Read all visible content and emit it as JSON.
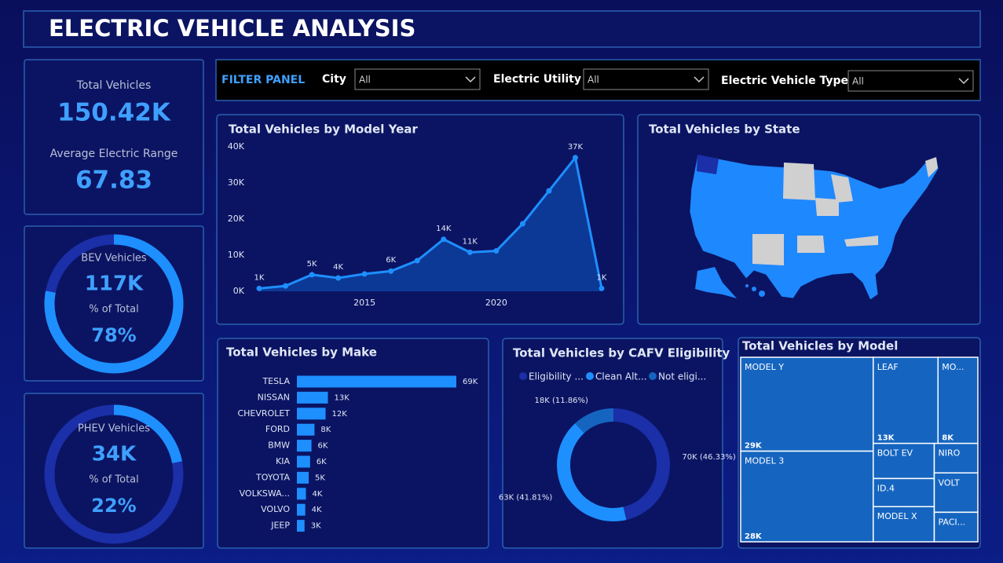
{
  "header": {
    "title": "ELECTRIC VEHICLE ANALYSIS"
  },
  "kpis": {
    "total_label": "Total Vehicles",
    "total_value": "150.42K",
    "range_label": "Average Electric Range",
    "range_value": "67.83"
  },
  "gauges": [
    {
      "label": "BEV Vehicles",
      "value": "117K",
      "sub_label": "% of Total",
      "percent": 78,
      "percent_label": "78%"
    },
    {
      "label": "PHEV Vehicles",
      "value": "34K",
      "sub_label": "% of Total",
      "percent": 22,
      "percent_label": "22%"
    }
  ],
  "filters": {
    "title": "FILTER PANEL",
    "items": [
      {
        "label": "City",
        "value": "All"
      },
      {
        "label": "Electric Utility",
        "value": "All"
      },
      {
        "label": "Electric Vehicle Type",
        "value": "All"
      }
    ]
  },
  "map": {
    "title": "Total Vehicles by State"
  },
  "chart_data": [
    {
      "type": "line",
      "title": "Total Vehicles by Model Year",
      "x": [
        2011,
        2012,
        2013,
        2014,
        2015,
        2016,
        2017,
        2018,
        2019,
        2020,
        2021,
        2022,
        2023,
        2024
      ],
      "values": [
        800,
        1500,
        4600,
        3700,
        4800,
        5600,
        8500,
        14400,
        10800,
        11200,
        18700,
        27800,
        37000,
        800
      ],
      "value_labels": [
        "1K",
        null,
        "5K",
        "4K",
        null,
        "6K",
        null,
        "14K",
        "11K",
        null,
        null,
        null,
        "37K",
        "1K"
      ],
      "color": "#1e8fff",
      "xlim": [
        2011,
        2024
      ],
      "xticks": [
        2015,
        2020
      ],
      "ylim": [
        0,
        40000
      ],
      "yticks": [
        {
          "value": 0,
          "label": "0K"
        },
        {
          "value": 10000,
          "label": "10K"
        },
        {
          "value": 20000,
          "label": "20K"
        },
        {
          "value": 30000,
          "label": "30K"
        },
        {
          "value": 40000,
          "label": "40K"
        }
      ]
    },
    {
      "type": "bar",
      "title": "Total Vehicles by Make",
      "categories": [
        "TESLA",
        "NISSAN",
        "CHEVROLET",
        "FORD",
        "BMW",
        "KIA",
        "TOYOTA",
        "VOLKSWA...",
        "VOLVO",
        "JEEP"
      ],
      "values": [
        68.9,
        13.4,
        12.4,
        7.6,
        6.3,
        5.7,
        5.1,
        3.9,
        3.6,
        3.3
      ],
      "value_labels": [
        "69K",
        "13K",
        "12K",
        "8K",
        "6K",
        "6K",
        "5K",
        "4K",
        "4K",
        "3K"
      ],
      "color": "#1e8fff"
    },
    {
      "type": "donut",
      "title": "Total Vehicles by CAFV Eligibility",
      "categories": [
        "Eligibility ...",
        "Clean Alt...",
        "Not eligi..."
      ],
      "values": [
        46.33,
        41.81,
        11.86
      ],
      "value_labels": [
        "70K (46.33%)",
        "63K (41.81%)",
        "18K (11.86%)"
      ],
      "colors": [
        "#1a2fa8",
        "#1e8fff",
        "#1565c0"
      ]
    },
    {
      "type": "treemap",
      "title": "Total Vehicles by Model",
      "categories": [
        "MODEL Y",
        "MODEL 3",
        "LEAF",
        "MO...",
        "BOLT EV",
        "ID.4",
        "MODEL X",
        "NIRO",
        "VOLT",
        "PACI..."
      ],
      "values": [
        29,
        28,
        13,
        8,
        5,
        4,
        5,
        3,
        4,
        3
      ],
      "value_labels": [
        "29K",
        "28K",
        "13K",
        "8K",
        null,
        null,
        null,
        null,
        null,
        null
      ],
      "color": "#1565c0"
    }
  ]
}
